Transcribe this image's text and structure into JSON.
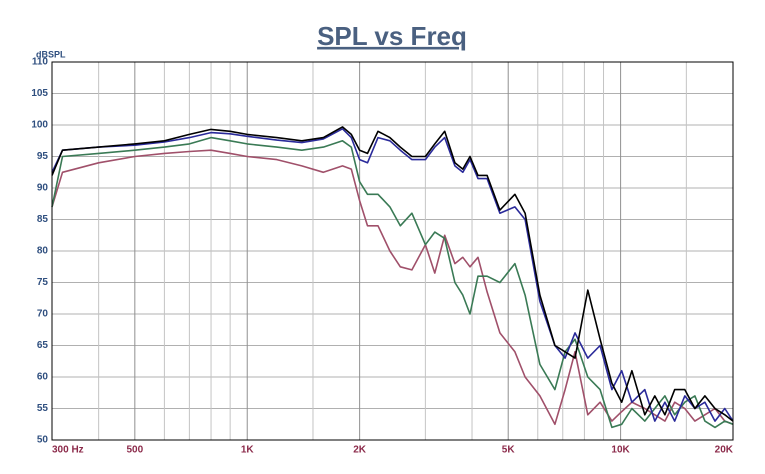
{
  "chart_data": {
    "type": "line",
    "title": "SPL vs Freq",
    "y_label": "dBSPL",
    "log_x": true,
    "grid": true,
    "xlim": [
      300,
      20000
    ],
    "xticks": [
      {
        "value": 300,
        "label": "300 Hz"
      },
      500,
      {
        "value": 1000,
        "label": "1K"
      },
      {
        "value": 2000,
        "label": "2K"
      },
      {
        "value": 5000,
        "label": "5K"
      },
      {
        "value": 10000,
        "label": "10K"
      },
      {
        "value": 20000,
        "label": "20K"
      }
    ],
    "xminor": [
      400,
      600,
      700,
      800,
      900,
      1500,
      3000,
      4000,
      6000,
      7000,
      8000,
      9000,
      15000
    ],
    "ylim": [
      50,
      110
    ],
    "yticks": [
      50,
      55,
      60,
      65,
      70,
      75,
      80,
      85,
      90,
      95,
      100,
      105,
      110
    ],
    "x": [
      300,
      320,
      400,
      500,
      600,
      700,
      800,
      900,
      1000,
      1200,
      1400,
      1600,
      1800,
      1900,
      2000,
      2100,
      2240,
      2410,
      2570,
      2760,
      3000,
      3180,
      3380,
      3600,
      3780,
      3950,
      4150,
      4390,
      4750,
      5210,
      5550,
      6080,
      6670,
      7100,
      7550,
      8170,
      8810,
      9480,
      10070,
      10720,
      11610,
      12350,
      13140,
      13960,
      14860,
      15810,
      16820,
      17900,
      19010,
      20000
    ],
    "series": [
      {
        "color": "#a0506a",
        "values": [
          87,
          92.5,
          94,
          95,
          95.5,
          95.8,
          96,
          95.5,
          95,
          94.5,
          93.5,
          92.5,
          93.5,
          93,
          88,
          84,
          84,
          80,
          77.5,
          77,
          81,
          76.5,
          82.5,
          78,
          79,
          77.5,
          79,
          73.5,
          67,
          64,
          60,
          57,
          52.5,
          58,
          64,
          54,
          56,
          53,
          54.5,
          56,
          55,
          54,
          53,
          56,
          55,
          53,
          54,
          55,
          53,
          52.5
        ]
      },
      {
        "color": "#3a7a55",
        "values": [
          87,
          95,
          95.5,
          96,
          96.5,
          97,
          98,
          97.5,
          97,
          96.5,
          96,
          96.5,
          97.5,
          96.5,
          91,
          89,
          89,
          87,
          84,
          86,
          81,
          83,
          82,
          75,
          73,
          70,
          76,
          76,
          75,
          78,
          73,
          62,
          58,
          64,
          66,
          60,
          58,
          52,
          52.5,
          55,
          53,
          55,
          57,
          54,
          56,
          57,
          53,
          52,
          53,
          52.5
        ]
      },
      {
        "color": "#2a2a9a",
        "values": [
          92.5,
          96,
          96.5,
          96.8,
          97.3,
          98,
          98.8,
          98.6,
          98.2,
          97.6,
          97.2,
          97.8,
          99.4,
          98,
          94.5,
          94,
          98,
          97.5,
          96,
          94.5,
          94.5,
          96.5,
          98,
          93.5,
          92.5,
          94.5,
          91.5,
          91.5,
          86,
          87,
          85,
          72,
          65,
          63,
          67,
          63,
          65,
          58,
          61,
          56,
          58,
          53,
          56,
          53,
          57,
          55,
          56,
          53,
          55,
          53
        ]
      },
      {
        "color": "#000000",
        "values": [
          92,
          96,
          96.5,
          97,
          97.5,
          98.5,
          99.3,
          99,
          98.5,
          98,
          97.5,
          98,
          99.7,
          98.5,
          96,
          95.5,
          99,
          98,
          96.5,
          95,
          95,
          97,
          99,
          94,
          93,
          95,
          92,
          92,
          86.5,
          89,
          86,
          73,
          65,
          64,
          63,
          73.8,
          66,
          59,
          56,
          61,
          54,
          57,
          54,
          58,
          58,
          55,
          57,
          55,
          54,
          53
        ]
      }
    ]
  }
}
